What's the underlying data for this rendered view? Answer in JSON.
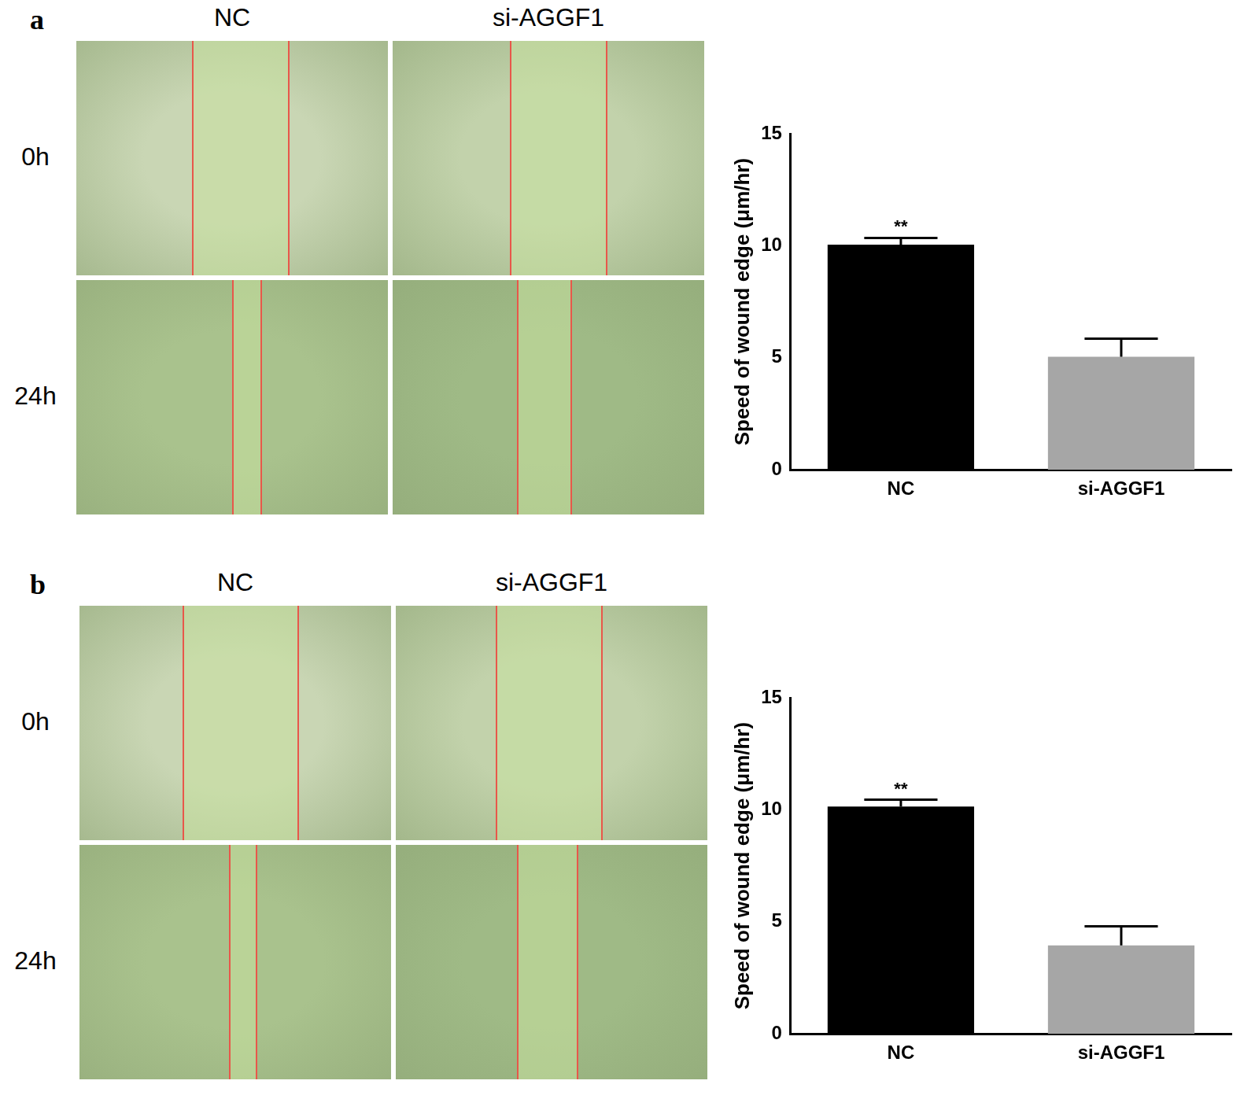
{
  "images": [
    {
      "letter": "a",
      "columns": [
        "NC",
        "si-AGGF1"
      ],
      "rows": [
        "0h",
        "24h"
      ]
    },
    {
      "letter": "b",
      "columns": [
        "NC",
        "si-AGGF1"
      ],
      "rows": [
        "0h",
        "24h"
      ]
    }
  ],
  "chart_data": [
    {
      "type": "bar",
      "y_label": "Speed of wound edge (μm/hr)",
      "categories": [
        "NC",
        "si-AGGF1"
      ],
      "values": [
        10.05,
        5.05
      ],
      "errors": [
        0.3,
        0.8
      ],
      "colors": [
        "#000000",
        "#a6a6a6"
      ],
      "ylim": [
        0,
        15
      ],
      "yticks": [
        0,
        5,
        10,
        15
      ],
      "grid": false,
      "annotations": [
        {
          "category": "NC",
          "text": "**"
        }
      ]
    },
    {
      "type": "bar",
      "y_label": "Speed of wound edge (μm/hr)",
      "categories": [
        "NC",
        "si-AGGF1"
      ],
      "values": [
        10.15,
        3.95
      ],
      "errors": [
        0.3,
        0.85
      ],
      "colors": [
        "#000000",
        "#a6a6a6"
      ],
      "ylim": [
        0,
        15
      ],
      "yticks": [
        0,
        5,
        10,
        15
      ],
      "grid": false,
      "annotations": [
        {
          "category": "NC",
          "text": "**"
        }
      ]
    }
  ]
}
